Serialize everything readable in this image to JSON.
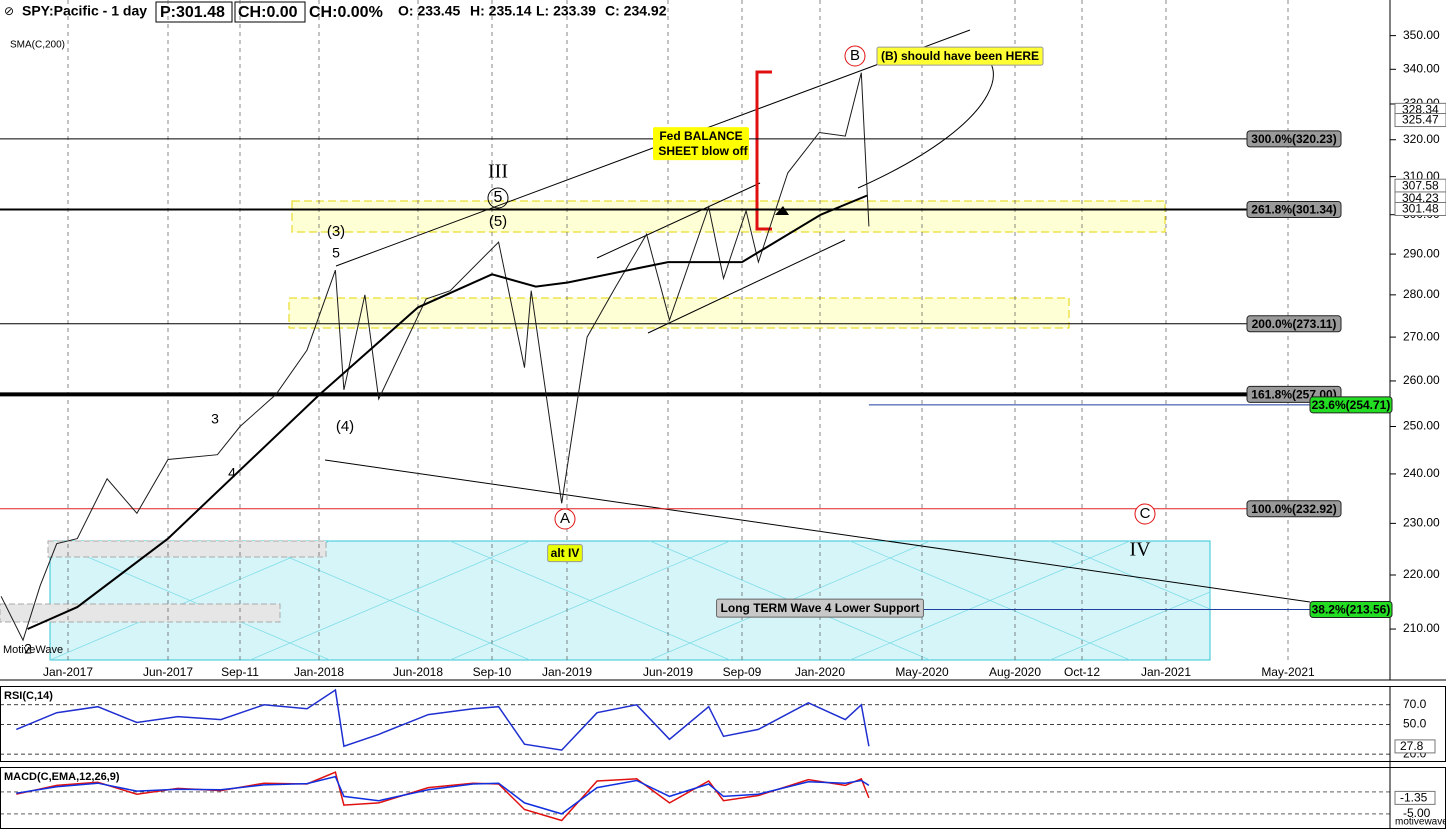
{
  "header": {
    "symbol": "SPY:Pacific - 1 day",
    "price": "P:301.48",
    "change": "CH:0.00",
    "change_pct": "CH:0.00%",
    "open": "O: 233.45",
    "high": "H: 235.14",
    "low": "L: 233.39",
    "close": "C: 234.92"
  },
  "watermark": "MotiveWave",
  "footer": "motivewave.com",
  "chart_data": [
    {
      "type": "line",
      "log_scale": true,
      "grid": true,
      "ylim": [
        203.6,
        360.9
      ],
      "yticks": [
        {
          "value": 210,
          "label": "210.00"
        },
        {
          "value": 220,
          "label": "220.00"
        },
        {
          "value": 230,
          "label": "230.00"
        },
        {
          "value": 240,
          "label": "240.00"
        },
        {
          "value": 250,
          "label": "250.00"
        },
        {
          "value": 260,
          "label": "260.00"
        },
        {
          "value": 270,
          "label": "270.00"
        },
        {
          "value": 280,
          "label": "280.00"
        },
        {
          "value": 290,
          "label": "290.00"
        },
        {
          "value": 300,
          "label": "300.00"
        },
        {
          "value": 310,
          "label": "310.00"
        },
        {
          "value": 320,
          "label": "320.00"
        },
        {
          "value": 330,
          "label": "330.00"
        },
        {
          "value": 340,
          "label": "340.00"
        },
        {
          "value": 350,
          "label": "350.00"
        }
      ],
      "xticks": [
        {
          "value": "2017-01-01",
          "label": "Jan-2017"
        },
        {
          "value": "2017-06-01",
          "label": "Jun-2017"
        },
        {
          "value": "2017-09-11",
          "label": "Sep-11"
        },
        {
          "value": "2018-01-01",
          "label": "Jan-2018"
        },
        {
          "value": "2018-06-01",
          "label": "Jun-2018"
        },
        {
          "value": "2018-09-10",
          "label": "Sep-10"
        },
        {
          "value": "2019-01-01",
          "label": "Jan-2019"
        },
        {
          "value": "2019-06-01",
          "label": "Jun-2019"
        },
        {
          "value": "2019-09-09",
          "label": "Sep-09"
        },
        {
          "value": "2020-01-01",
          "label": "Jan-2020"
        },
        {
          "value": "2020-05-01",
          "label": "May-2020"
        },
        {
          "value": "2020-08-03",
          "label": "Aug-2020"
        },
        {
          "value": "2020-10-12",
          "label": "Oct-12"
        },
        {
          "value": "2021-01-01",
          "label": "Jan-2021"
        },
        {
          "value": "2021-05-03",
          "label": "May-2021"
        }
      ],
      "series": [
        {
          "color": "#1a1a1a",
          "width": 1,
          "x": [
            "2016-09-22",
            "2016-10-25",
            "2016-11-20",
            "2016-12-15",
            "2017-01-15",
            "2017-03-01",
            "2017-04-15",
            "2017-06-01",
            "2017-08-10",
            "2017-09-11",
            "2017-11-01",
            "2017-12-15",
            "2018-01-26",
            "2018-02-08",
            "2018-03-12",
            "2018-04-02",
            "2018-06-12",
            "2018-07-15",
            "2018-09-20",
            "2018-10-29",
            "2018-11-08",
            "2018-12-24",
            "2019-01-31",
            "2019-03-15",
            "2019-04-30",
            "2019-06-03",
            "2019-07-26",
            "2019-08-15",
            "2019-09-15",
            "2019-10-03",
            "2019-11-15",
            "2019-12-31",
            "2020-01-31",
            "2020-02-19",
            "2020-02-28"
          ],
          "values": [
            216,
            208,
            218,
            226,
            227,
            239,
            232,
            243,
            244,
            250,
            257,
            267,
            286,
            258,
            280,
            256,
            279,
            281,
            293,
            263,
            281,
            234,
            270,
            282,
            295,
            274,
            302,
            284,
            301,
            288,
            311,
            322,
            321,
            339,
            297
          ]
        },
        {
          "name": "SMA(C,200)",
          "color": "#000000",
          "width": 2,
          "x": [
            "2016-11-01",
            "2017-01-15",
            "2017-06-01",
            "2018-01-02",
            "2018-06-01",
            "2018-09-10",
            "2018-11-15",
            "2019-01-02",
            "2019-06-01",
            "2019-09-09",
            "2020-01-02",
            "2020-02-26"
          ],
          "values": [
            210,
            214,
            227,
            257,
            277,
            285,
            282,
            283,
            288,
            288,
            300,
            305
          ]
        }
      ],
      "levels": [
        {
          "label": "300.0%(320.23)",
          "value": 320.23,
          "line_color": "#000000",
          "line_width": 1,
          "box_color": "#9a9a9a"
        },
        {
          "label": "261.8%(301.34)",
          "value": 301.34,
          "line_color": "#000000",
          "line_width": 2,
          "box_color": "#9a9a9a"
        },
        {
          "label": "200.0%(273.11)",
          "value": 273.11,
          "line_color": "#000000",
          "line_width": 1,
          "box_color": "#9a9a9a"
        },
        {
          "label": "161.8%(257.00)",
          "value": 257.0,
          "line_color": "#000000",
          "line_width": 4,
          "box_color": "#9a9a9a"
        },
        {
          "label": "100.0%(232.92)",
          "value": 232.92,
          "line_color": "#e02020",
          "line_width": 1,
          "box_color": "#9a9a9a"
        },
        {
          "label": "23.6%(254.71)",
          "value": 254.71,
          "line_color": "#1f3fa0",
          "line_width": 1,
          "box_color": "#22dd22"
        },
        {
          "label": "38.2%(213.56)",
          "value": 213.56,
          "line_color": "#1f3fa0",
          "line_width": 1,
          "box_color": "#22dd22"
        }
      ],
      "price_markers": [
        328.34,
        325.47,
        307.58,
        304.23,
        301.48
      ],
      "annotations": [
        "SMA(C,200)",
        "III",
        "5",
        "(5)",
        "(3)",
        "5",
        "3",
        "4",
        "(4)",
        "2",
        "A",
        "B",
        "C",
        "IV",
        "alt IV",
        "(B) should have been HERE",
        "Fed BALANCE",
        "SHEET blow off",
        "Long TERM Wave 4 Lower Support"
      ]
    },
    {
      "type": "line",
      "title": "RSI(C,14)",
      "ylim": [
        13,
        88
      ],
      "yticks": [
        {
          "value": 70,
          "label": "70.0"
        },
        {
          "value": 50,
          "label": "50.0"
        },
        {
          "value": 20,
          "label": "20.0"
        }
      ],
      "markers": [
        27.8
      ],
      "x": [
        "2016-10-15",
        "2016-12-15",
        "2017-02-15",
        "2017-04-15",
        "2017-06-15",
        "2017-08-15",
        "2017-10-15",
        "2017-12-15",
        "2018-01-26",
        "2018-02-08",
        "2018-04-02",
        "2018-06-15",
        "2018-08-15",
        "2018-09-20",
        "2018-10-29",
        "2018-12-24",
        "2019-02-15",
        "2019-04-15",
        "2019-06-03",
        "2019-07-26",
        "2019-08-15",
        "2019-10-03",
        "2019-12-15",
        "2020-01-31",
        "2020-02-19",
        "2020-02-28"
      ],
      "series": [
        {
          "color": "#1f2fd0",
          "values": [
            45,
            62,
            68,
            52,
            58,
            55,
            70,
            66,
            85,
            28,
            40,
            60,
            66,
            68,
            30,
            24,
            62,
            70,
            35,
            68,
            38,
            45,
            72,
            55,
            70,
            28
          ]
        }
      ]
    },
    {
      "type": "line",
      "title": "MACD(C,EMA,12,26,9)",
      "ylim": [
        -8.2,
        5.45
      ],
      "yticks": [
        {
          "value": -5,
          "label": "-5.00"
        }
      ],
      "markers": [
        {
          "value": -1.35,
          "label": "-1.35"
        }
      ],
      "x": [
        "2016-10-15",
        "2016-12-15",
        "2017-02-15",
        "2017-04-15",
        "2017-06-15",
        "2017-08-15",
        "2017-10-15",
        "2017-12-15",
        "2018-01-26",
        "2018-02-08",
        "2018-04-02",
        "2018-06-15",
        "2018-08-15",
        "2018-09-20",
        "2018-10-29",
        "2018-12-24",
        "2019-02-15",
        "2019-04-15",
        "2019-06-03",
        "2019-07-26",
        "2019-08-15",
        "2019-10-03",
        "2019-12-15",
        "2020-01-31",
        "2020-02-19",
        "2020-02-28"
      ],
      "series": [
        {
          "color": "#e01010",
          "values": [
            -0.5,
            1.5,
            2.2,
            -0.5,
            0.8,
            0.3,
            2.0,
            1.8,
            4.5,
            -3.0,
            -2.5,
            1.0,
            2.0,
            1.8,
            -4.0,
            -6.5,
            2.5,
            3.0,
            -2.5,
            2.5,
            -2.0,
            -0.8,
            2.8,
            1.5,
            3.0,
            -1.35
          ]
        },
        {
          "color": "#1030e0",
          "values": [
            -0.3,
            1.2,
            2.0,
            0.2,
            0.6,
            0.5,
            1.6,
            1.9,
            3.5,
            -1.0,
            -2.0,
            0.5,
            1.8,
            2.0,
            -2.5,
            -5.0,
            1.0,
            2.6,
            -1.0,
            1.8,
            -1.0,
            -0.5,
            2.3,
            2.0,
            2.6,
            1.5
          ]
        }
      ]
    }
  ]
}
